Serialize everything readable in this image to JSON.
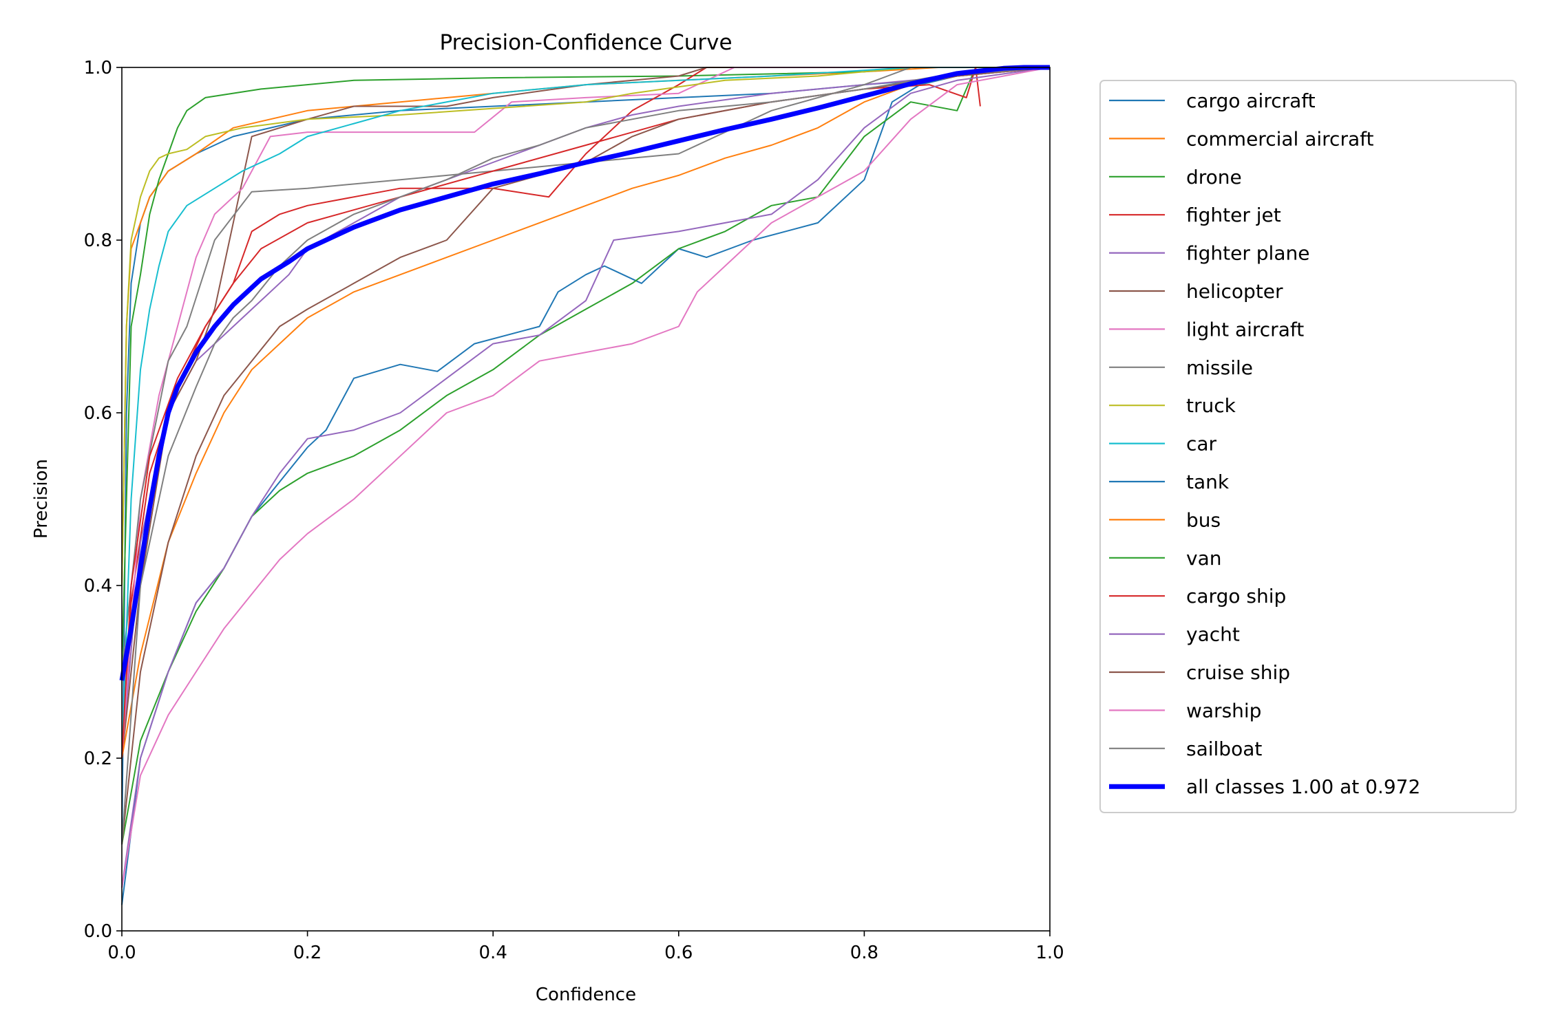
{
  "chart_data": {
    "type": "line",
    "title": "Precision-Confidence Curve",
    "xlabel": "Confidence",
    "ylabel": "Precision",
    "xlim": [
      0,
      1
    ],
    "ylim": [
      0,
      1
    ],
    "x_ticks": [
      "0.0",
      "0.2",
      "0.4",
      "0.6",
      "0.8",
      "1.0"
    ],
    "y_ticks": [
      "0.0",
      "0.2",
      "0.4",
      "0.6",
      "0.8",
      "1.0"
    ],
    "grid": false,
    "legend_position": "outside-right",
    "series": [
      {
        "name": "cargo aircraft",
        "color": "#1f77b4",
        "x": [
          0,
          0.005,
          0.01,
          0.02,
          0.03,
          0.05,
          0.08,
          0.12,
          0.2,
          0.3,
          0.4,
          0.5,
          0.6,
          0.7,
          0.8,
          0.86,
          0.9,
          1.0
        ],
        "y": [
          0.1,
          0.6,
          0.75,
          0.82,
          0.85,
          0.88,
          0.9,
          0.92,
          0.94,
          0.95,
          0.955,
          0.96,
          0.965,
          0.97,
          0.98,
          0.985,
          0.99,
          1.0
        ]
      },
      {
        "name": "commercial aircraft",
        "color": "#ff7f0e",
        "x": [
          0,
          0.005,
          0.01,
          0.02,
          0.03,
          0.05,
          0.08,
          0.12,
          0.2,
          0.3,
          0.4,
          0.5,
          0.6,
          0.7,
          0.8,
          0.88,
          1.0
        ],
        "y": [
          0.4,
          0.7,
          0.79,
          0.82,
          0.85,
          0.88,
          0.9,
          0.93,
          0.95,
          0.96,
          0.97,
          0.98,
          0.985,
          0.99,
          0.995,
          1.0,
          1.0
        ]
      },
      {
        "name": "drone",
        "color": "#2ca02c",
        "x": [
          0,
          0.005,
          0.01,
          0.02,
          0.03,
          0.04,
          0.05,
          0.06,
          0.07,
          0.09,
          0.15,
          0.25,
          0.4,
          0.6,
          0.8,
          0.85,
          1.0
        ],
        "y": [
          0.3,
          0.5,
          0.7,
          0.76,
          0.83,
          0.87,
          0.9,
          0.93,
          0.95,
          0.965,
          0.975,
          0.985,
          0.988,
          0.99,
          0.995,
          1.0,
          1.0
        ]
      },
      {
        "name": "fighter jet",
        "color": "#d62728",
        "x": [
          0,
          0.01,
          0.03,
          0.06,
          0.09,
          0.12,
          0.14,
          0.17,
          0.2,
          0.3,
          0.4,
          0.46,
          0.5,
          0.55,
          0.6,
          0.63,
          0.7,
          0.8,
          0.9,
          1.0
        ],
        "y": [
          0.2,
          0.38,
          0.53,
          0.63,
          0.7,
          0.75,
          0.81,
          0.83,
          0.84,
          0.86,
          0.86,
          0.85,
          0.9,
          0.95,
          0.98,
          1.0,
          1.0,
          1.0,
          1.0,
          1.0
        ]
      },
      {
        "name": "fighter plane",
        "color": "#9467bd",
        "x": [
          0,
          0.02,
          0.05,
          0.08,
          0.11,
          0.15,
          0.18,
          0.2,
          0.25,
          0.3,
          0.35,
          0.4,
          0.45,
          0.5,
          0.55,
          0.6,
          0.7,
          0.8,
          0.9,
          1.0
        ],
        "y": [
          0.2,
          0.45,
          0.6,
          0.66,
          0.69,
          0.73,
          0.76,
          0.79,
          0.82,
          0.85,
          0.87,
          0.89,
          0.91,
          0.93,
          0.945,
          0.955,
          0.97,
          0.98,
          0.99,
          1.0
        ]
      },
      {
        "name": "helicopter",
        "color": "#8c564b",
        "x": [
          0,
          0.02,
          0.05,
          0.08,
          0.1,
          0.12,
          0.14,
          0.2,
          0.25,
          0.35,
          0.4,
          0.5,
          0.6,
          0.63,
          0.7,
          0.8,
          0.9,
          1.0
        ],
        "y": [
          0.2,
          0.4,
          0.6,
          0.66,
          0.72,
          0.82,
          0.92,
          0.94,
          0.955,
          0.955,
          0.965,
          0.98,
          0.99,
          1.0,
          1.0,
          1.0,
          1.0,
          1.0
        ]
      },
      {
        "name": "light aircraft",
        "color": "#e377c2",
        "x": [
          0,
          0.02,
          0.04,
          0.06,
          0.08,
          0.1,
          0.13,
          0.16,
          0.2,
          0.3,
          0.38,
          0.42,
          0.5,
          0.6,
          0.66,
          0.8,
          1.0
        ],
        "y": [
          0.2,
          0.5,
          0.62,
          0.7,
          0.78,
          0.83,
          0.86,
          0.92,
          0.925,
          0.925,
          0.925,
          0.96,
          0.965,
          0.97,
          1.0,
          1.0,
          1.0
        ]
      },
      {
        "name": "missile",
        "color": "#7f7f7f",
        "x": [
          0,
          0.02,
          0.05,
          0.07,
          0.1,
          0.14,
          0.2,
          0.3,
          0.4,
          0.5,
          0.6,
          0.7,
          0.8,
          0.85,
          1.0
        ],
        "y": [
          0.3,
          0.5,
          0.66,
          0.7,
          0.8,
          0.856,
          0.86,
          0.87,
          0.88,
          0.89,
          0.9,
          0.95,
          0.98,
          1.0,
          1.0
        ]
      },
      {
        "name": "truck",
        "color": "#bcbd22",
        "x": [
          0,
          0.005,
          0.01,
          0.02,
          0.03,
          0.04,
          0.05,
          0.07,
          0.09,
          0.13,
          0.2,
          0.3,
          0.5,
          0.55,
          0.65,
          0.75,
          0.85,
          1.0
        ],
        "y": [
          0.4,
          0.7,
          0.8,
          0.85,
          0.88,
          0.895,
          0.9,
          0.905,
          0.92,
          0.93,
          0.94,
          0.945,
          0.96,
          0.97,
          0.985,
          0.99,
          1.0,
          1.0
        ]
      },
      {
        "name": "car",
        "color": "#17becf",
        "x": [
          0,
          0.01,
          0.02,
          0.03,
          0.04,
          0.05,
          0.07,
          0.1,
          0.13,
          0.17,
          0.2,
          0.25,
          0.3,
          0.4,
          0.5,
          0.7,
          0.85,
          1.0
        ],
        "y": [
          0.2,
          0.5,
          0.65,
          0.72,
          0.77,
          0.81,
          0.84,
          0.86,
          0.88,
          0.9,
          0.92,
          0.935,
          0.95,
          0.97,
          0.98,
          0.99,
          1.0,
          1.0
        ]
      },
      {
        "name": "tank",
        "color": "#1f77b4",
        "x": [
          0,
          0.02,
          0.05,
          0.08,
          0.11,
          0.14,
          0.17,
          0.2,
          0.22,
          0.25,
          0.3,
          0.34,
          0.38,
          0.45,
          0.47,
          0.5,
          0.52,
          0.56,
          0.6,
          0.63,
          0.68,
          0.75,
          0.8,
          0.83,
          0.86,
          0.9,
          1.0
        ],
        "y": [
          0.03,
          0.2,
          0.3,
          0.38,
          0.42,
          0.48,
          0.52,
          0.56,
          0.58,
          0.64,
          0.656,
          0.648,
          0.68,
          0.7,
          0.74,
          0.76,
          0.77,
          0.75,
          0.79,
          0.78,
          0.8,
          0.82,
          0.87,
          0.96,
          0.98,
          0.99,
          1.0
        ]
      },
      {
        "name": "bus",
        "color": "#ff7f0e",
        "x": [
          0,
          0.02,
          0.05,
          0.08,
          0.11,
          0.14,
          0.17,
          0.2,
          0.25,
          0.3,
          0.35,
          0.4,
          0.45,
          0.5,
          0.55,
          0.6,
          0.65,
          0.7,
          0.75,
          0.8,
          0.85,
          0.9,
          1.0
        ],
        "y": [
          0.2,
          0.32,
          0.45,
          0.53,
          0.6,
          0.65,
          0.68,
          0.71,
          0.74,
          0.76,
          0.78,
          0.8,
          0.82,
          0.84,
          0.86,
          0.875,
          0.895,
          0.91,
          0.93,
          0.96,
          0.98,
          0.99,
          1.0
        ]
      },
      {
        "name": "van",
        "color": "#2ca02c",
        "x": [
          0,
          0.02,
          0.05,
          0.08,
          0.11,
          0.14,
          0.17,
          0.2,
          0.25,
          0.3,
          0.35,
          0.4,
          0.45,
          0.5,
          0.55,
          0.6,
          0.65,
          0.7,
          0.75,
          0.8,
          0.85,
          0.9,
          0.92,
          1.0
        ],
        "y": [
          0.1,
          0.22,
          0.3,
          0.37,
          0.42,
          0.48,
          0.51,
          0.53,
          0.55,
          0.58,
          0.62,
          0.65,
          0.69,
          0.72,
          0.75,
          0.79,
          0.81,
          0.84,
          0.85,
          0.92,
          0.96,
          0.95,
          1.0,
          1.0
        ]
      },
      {
        "name": "cargo ship",
        "color": "#d62728",
        "x": [
          0,
          0.01,
          0.03,
          0.06,
          0.09,
          0.12,
          0.15,
          0.2,
          0.3,
          0.4,
          0.5,
          0.6,
          0.7,
          0.8,
          0.87,
          0.91,
          0.92,
          0.925
        ],
        "y": [
          0.2,
          0.4,
          0.55,
          0.64,
          0.7,
          0.75,
          0.79,
          0.82,
          0.85,
          0.88,
          0.91,
          0.94,
          0.96,
          0.975,
          0.98,
          0.965,
          1.0,
          0.955
        ]
      },
      {
        "name": "yacht",
        "color": "#9467bd",
        "x": [
          0,
          0.02,
          0.05,
          0.08,
          0.11,
          0.14,
          0.17,
          0.2,
          0.25,
          0.3,
          0.35,
          0.4,
          0.45,
          0.5,
          0.53,
          0.6,
          0.7,
          0.75,
          0.8,
          0.85,
          0.9,
          1.0
        ],
        "y": [
          0.05,
          0.2,
          0.3,
          0.38,
          0.42,
          0.48,
          0.53,
          0.57,
          0.58,
          0.6,
          0.64,
          0.68,
          0.69,
          0.73,
          0.8,
          0.81,
          0.83,
          0.87,
          0.93,
          0.97,
          0.985,
          1.0
        ]
      },
      {
        "name": "cruise ship",
        "color": "#8c564b",
        "x": [
          0,
          0.02,
          0.05,
          0.08,
          0.11,
          0.14,
          0.17,
          0.2,
          0.25,
          0.3,
          0.35,
          0.4,
          0.5,
          0.55,
          0.6,
          0.7,
          0.8,
          0.9,
          1.0
        ],
        "y": [
          0.1,
          0.3,
          0.45,
          0.55,
          0.62,
          0.66,
          0.7,
          0.72,
          0.75,
          0.78,
          0.8,
          0.86,
          0.89,
          0.92,
          0.94,
          0.96,
          0.975,
          0.99,
          1.0
        ]
      },
      {
        "name": "warship",
        "color": "#e377c2",
        "x": [
          0,
          0.02,
          0.05,
          0.08,
          0.11,
          0.14,
          0.17,
          0.2,
          0.25,
          0.3,
          0.35,
          0.4,
          0.45,
          0.5,
          0.55,
          0.6,
          0.62,
          0.7,
          0.75,
          0.8,
          0.85,
          0.9,
          1.0
        ],
        "y": [
          0.05,
          0.18,
          0.25,
          0.3,
          0.35,
          0.39,
          0.43,
          0.46,
          0.5,
          0.55,
          0.6,
          0.62,
          0.66,
          0.67,
          0.68,
          0.7,
          0.74,
          0.82,
          0.85,
          0.88,
          0.94,
          0.98,
          1.0
        ]
      },
      {
        "name": "sailboat",
        "color": "#7f7f7f",
        "x": [
          0,
          0.02,
          0.05,
          0.08,
          0.1,
          0.12,
          0.14,
          0.17,
          0.2,
          0.25,
          0.3,
          0.35,
          0.4,
          0.45,
          0.5,
          0.6,
          0.7,
          0.8,
          0.88,
          1.0
        ],
        "y": [
          0.1,
          0.4,
          0.55,
          0.63,
          0.68,
          0.71,
          0.73,
          0.77,
          0.8,
          0.83,
          0.85,
          0.87,
          0.895,
          0.91,
          0.93,
          0.95,
          0.96,
          0.975,
          0.99,
          1.0
        ]
      },
      {
        "name": "all classes 1.00 at 0.972",
        "color": "#0000ff",
        "bold": true,
        "x": [
          0,
          0.01,
          0.02,
          0.03,
          0.04,
          0.05,
          0.06,
          0.08,
          0.1,
          0.12,
          0.15,
          0.18,
          0.2,
          0.25,
          0.3,
          0.35,
          0.4,
          0.45,
          0.5,
          0.55,
          0.6,
          0.65,
          0.7,
          0.75,
          0.8,
          0.85,
          0.9,
          0.95,
          0.972,
          1.0
        ],
        "y": [
          0.29,
          0.35,
          0.42,
          0.49,
          0.55,
          0.6,
          0.63,
          0.67,
          0.7,
          0.725,
          0.755,
          0.775,
          0.79,
          0.815,
          0.835,
          0.85,
          0.865,
          0.877,
          0.89,
          0.902,
          0.915,
          0.928,
          0.94,
          0.953,
          0.967,
          0.981,
          0.993,
          0.999,
          1.0,
          1.0
        ]
      }
    ]
  }
}
